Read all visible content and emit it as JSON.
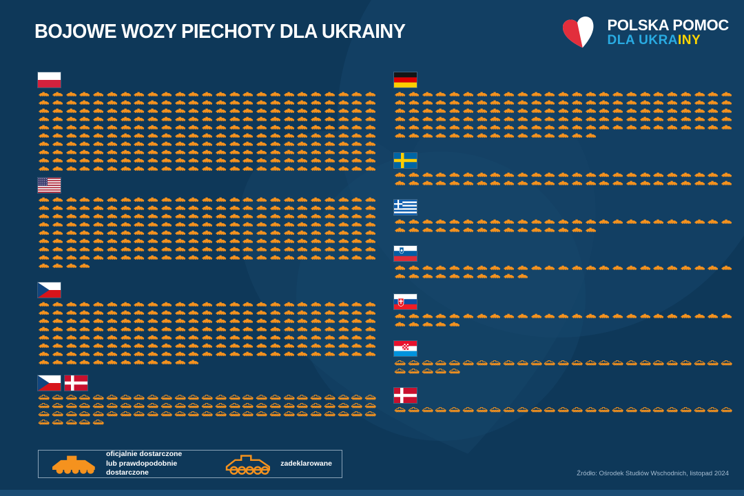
{
  "title": "BOJOWE WOZY PIECHOTY DLA UKRAINY",
  "logo": {
    "line1": "POLSKA POMOC",
    "line2_blue": "DLA UKRA",
    "line2_yellow": "INY"
  },
  "legend": {
    "delivered_label_line1": "oficjalnie dostarczone",
    "delivered_label_line2": "lub prawdopodobnie dostarczone",
    "declared_label": "zadeklarowane"
  },
  "source": "Źródło: Ośrodek Studiów Wschodnich, listopad 2024",
  "colors": {
    "background": "#0E3859",
    "icon_orange": "#F5921E",
    "accent_blue": "#29ABE2",
    "accent_yellow": "#FFD500",
    "heart_red": "#E22E3C",
    "text_white": "#FFFFFF"
  },
  "chart_data": {
    "type": "pictogram",
    "title": "BOJOWE WOZY PIECHOTY DLA UKRAINY",
    "unit": "infantry fighting vehicles (1 icon = 1 vehicle)",
    "icons_per_row": 25,
    "legend": {
      "filled_icon": "oficjalnie dostarczone lub prawdopodobnie dostarczone",
      "outlined_icon": "zadeklarowane"
    },
    "source": "Źródło: Ośrodek Studiów Wschodnich, listopad 2024",
    "columns": {
      "left": [
        {
          "country": "Polska",
          "flags": [
            "pl"
          ],
          "count": 250,
          "status": "delivered"
        },
        {
          "country": "USA",
          "flags": [
            "us"
          ],
          "count": 204,
          "status": "delivered"
        },
        {
          "country": "Czechy",
          "flags": [
            "cz"
          ],
          "count": 187,
          "status": "delivered"
        },
        {
          "country": "Czechy i Dania",
          "flags": [
            "cz",
            "dk"
          ],
          "count": 80,
          "status": "declared"
        }
      ],
      "right": [
        {
          "country": "Niemcy",
          "flags": [
            "de"
          ],
          "count": 140,
          "status": "delivered"
        },
        {
          "country": "Szwecja",
          "flags": [
            "se"
          ],
          "count": 50,
          "status": "delivered"
        },
        {
          "country": "Grecja",
          "flags": [
            "gr"
          ],
          "count": 40,
          "status": "delivered"
        },
        {
          "country": "Słowenia",
          "flags": [
            "si"
          ],
          "count": 35,
          "status": "delivered"
        },
        {
          "country": "Słowacja",
          "flags": [
            "sk"
          ],
          "count": 30,
          "status": "delivered"
        },
        {
          "country": "Chorwacja",
          "flags": [
            "hr"
          ],
          "count": 30,
          "status": "declared"
        },
        {
          "country": "Dania",
          "flags": [
            "dk"
          ],
          "count": 25,
          "status": "declared"
        }
      ]
    }
  }
}
